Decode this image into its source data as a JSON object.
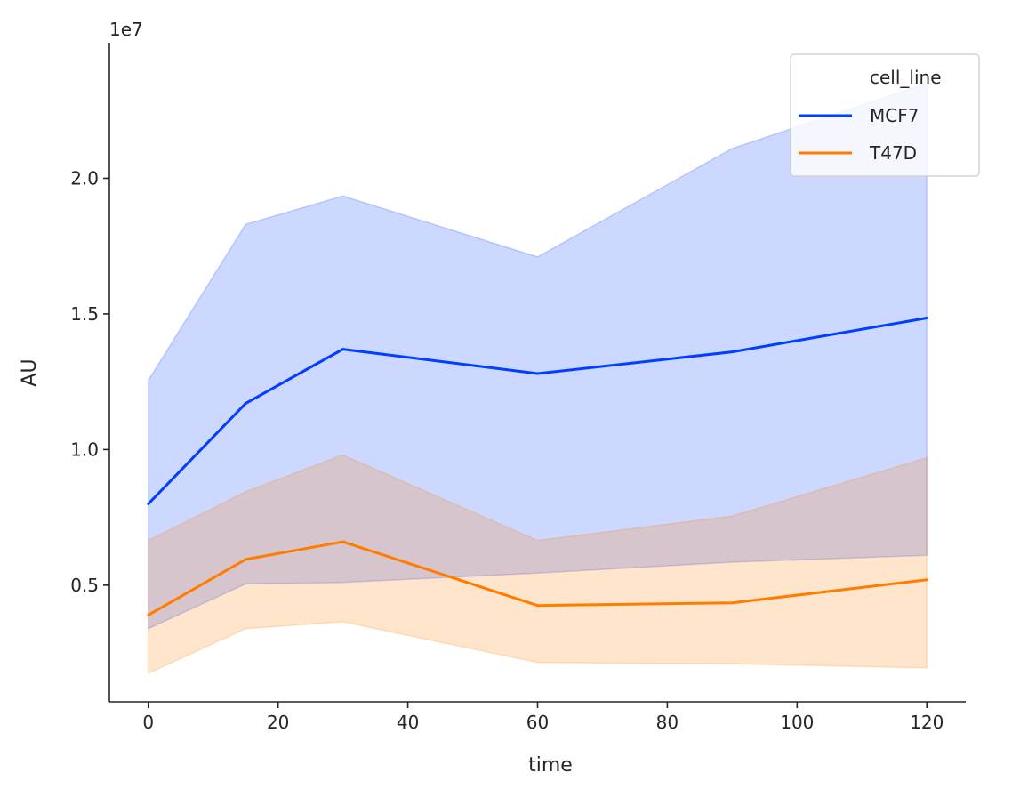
{
  "chart_data": {
    "type": "line",
    "xlabel": "time",
    "ylabel": "AU",
    "offset_label": "1e7",
    "xlim": [
      -6,
      126
    ],
    "ylim": [
      0.07,
      2.5
    ],
    "x_ticks": [
      0,
      20,
      40,
      60,
      80,
      100,
      120
    ],
    "x_tick_labels": [
      "0",
      "20",
      "40",
      "60",
      "80",
      "100",
      "120"
    ],
    "y_ticks": [
      0.5,
      1.0,
      1.5,
      2.0
    ],
    "y_tick_labels": [
      "0.5",
      "1.0",
      "1.5",
      "2.0"
    ],
    "grid": false,
    "legend": {
      "title": "cell_line",
      "placement": "top-right"
    },
    "x": [
      0,
      15,
      30,
      60,
      90,
      120
    ],
    "series": [
      {
        "name": "MCF7",
        "color": "#023eff",
        "fill_color": "#023eff",
        "values": [
          0.8,
          1.17,
          1.37,
          1.28,
          1.36,
          1.485
        ],
        "ci_low": [
          0.34,
          0.505,
          0.51,
          0.545,
          0.585,
          0.61
        ],
        "ci_high": [
          1.255,
          1.83,
          1.935,
          1.71,
          2.11,
          2.35
        ]
      },
      {
        "name": "T47D",
        "color": "#ff7c00",
        "fill_color": "#ff7c00",
        "values": [
          0.39,
          0.595,
          0.66,
          0.425,
          0.435,
          0.52
        ],
        "ci_low": [
          0.175,
          0.34,
          0.365,
          0.215,
          0.21,
          0.195
        ],
        "ci_high": [
          0.665,
          0.845,
          0.98,
          0.665,
          0.755,
          0.97
        ]
      }
    ]
  }
}
